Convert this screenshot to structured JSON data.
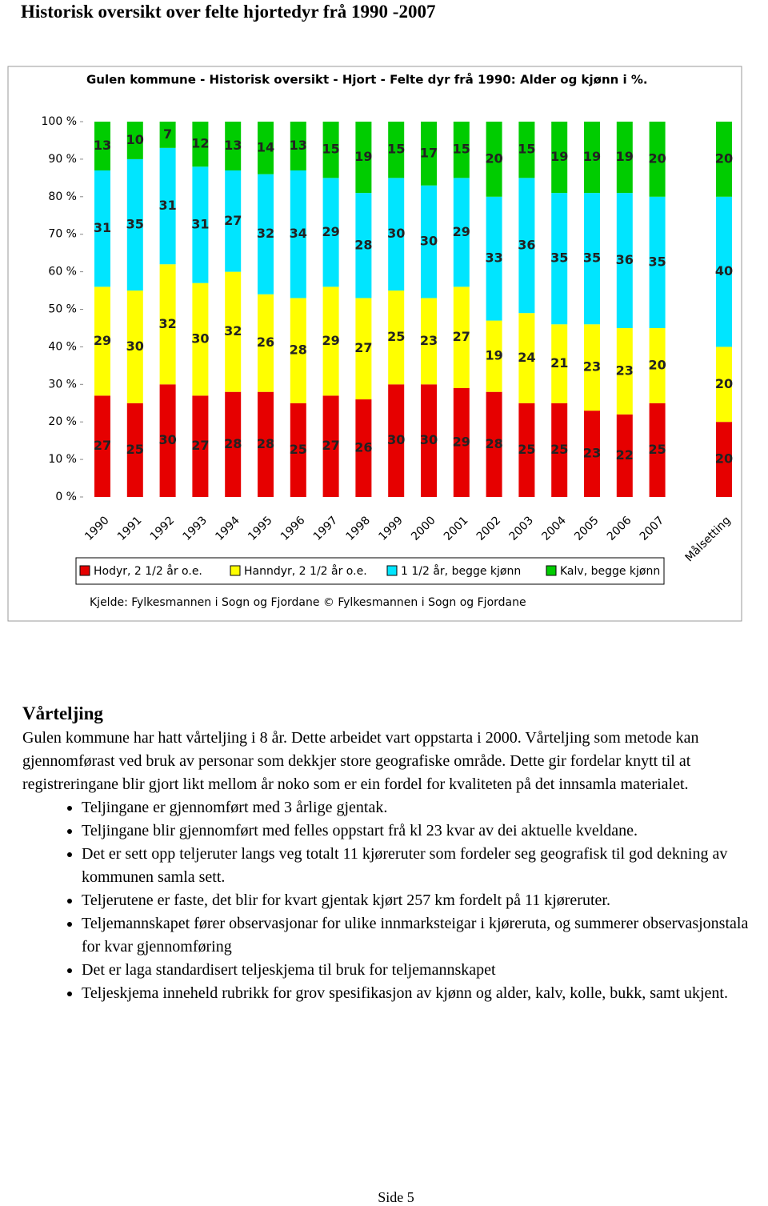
{
  "header": {
    "title": "Historisk oversikt over felte hjortedyr frå 1990 -2007"
  },
  "chart_data": {
    "type": "stacked-bar",
    "title": "Gulen kommune - Historisk oversikt - Hjort - Felte dyr frå 1990: Alder og kjønn i %.",
    "source": "Kjelde: Fylkesmannen i Sogn og Fjordane © Fylkesmannen i Sogn og Fjordane",
    "categories": [
      "1990",
      "1991",
      "1992",
      "1993",
      "1994",
      "1995",
      "1996",
      "1997",
      "1998",
      "1999",
      "2000",
      "2001",
      "2002",
      "2003",
      "2004",
      "2005",
      "2006",
      "2007",
      "Målsetting"
    ],
    "series": [
      {
        "name": "Hodyr, 2 1/2 år o.e.",
        "color": "#e60000",
        "values": [
          27,
          25,
          30,
          27,
          28,
          28,
          25,
          27,
          26,
          30,
          30,
          29,
          28,
          25,
          25,
          23,
          22,
          25,
          20
        ]
      },
      {
        "name": "Hanndyr, 2 1/2 år o.e.",
        "color": "#ffff00",
        "values": [
          29,
          30,
          32,
          30,
          32,
          26,
          28,
          29,
          27,
          25,
          23,
          27,
          19,
          24,
          21,
          23,
          23,
          20,
          20
        ]
      },
      {
        "name": "1 1/2 år, begge kjønn",
        "color": "#00e5ff",
        "values": [
          31,
          35,
          31,
          31,
          27,
          32,
          34,
          29,
          28,
          30,
          30,
          29,
          33,
          36,
          35,
          35,
          36,
          35,
          40
        ]
      },
      {
        "name": "Kalv, begge kjønn",
        "color": "#00cc00",
        "values": [
          13,
          10,
          7,
          12,
          13,
          14,
          13,
          15,
          19,
          15,
          17,
          15,
          20,
          15,
          19,
          19,
          19,
          20,
          20
        ]
      }
    ],
    "ylim": [
      0,
      100
    ],
    "yticks": [
      {
        "value": 0,
        "label": "0 %"
      },
      {
        "value": 10,
        "label": "10 %"
      },
      {
        "value": 20,
        "label": "20 %"
      },
      {
        "value": 30,
        "label": "30 %"
      },
      {
        "value": 40,
        "label": "40 %"
      },
      {
        "value": 50,
        "label": "50 %"
      },
      {
        "value": 60,
        "label": "60 %"
      },
      {
        "value": 70,
        "label": "70 %"
      },
      {
        "value": 80,
        "label": "80 %"
      },
      {
        "value": 90,
        "label": "90 %"
      },
      {
        "value": 100,
        "label": "100 %"
      }
    ]
  },
  "section": {
    "heading": "Vårteljing",
    "paragraph": "Gulen kommune har hatt vårteljing i 8 år.  Dette arbeidet vart oppstarta i 2000. Vårteljing som metode kan gjennomførast ved bruk av personar som dekkjer store geografiske område. Dette gir fordelar knytt til at registreringane blir gjort likt mellom år noko som er ein fordel for kvaliteten på det innsamla materialet.",
    "bullets": [
      "Teljingane er gjennomført med 3 årlige gjentak.",
      "Teljingane blir gjennomført med felles oppstart frå kl 23 kvar av dei aktuelle kveldane.",
      "Det er sett opp teljeruter langs veg totalt 11 kjøreruter som fordeler seg geografisk til god dekning av kommunen samla sett.",
      "Teljerutene er faste, det blir for kvart gjentak kjørt 257 km fordelt på 11 kjøreruter.",
      "Teljemannskapet fører observasjonar for ulike innmarksteigar i kjøreruta, og summerer observasjonstala for kvar gjennomføring",
      "Det er laga standardisert teljeskjema til bruk for teljemannskapet",
      "Teljeskjema inneheld rubrikk for grov spesifikasjon av kjønn og alder, kalv, kolle, bukk, samt ukjent."
    ]
  },
  "footer": {
    "page": "Side 5"
  }
}
